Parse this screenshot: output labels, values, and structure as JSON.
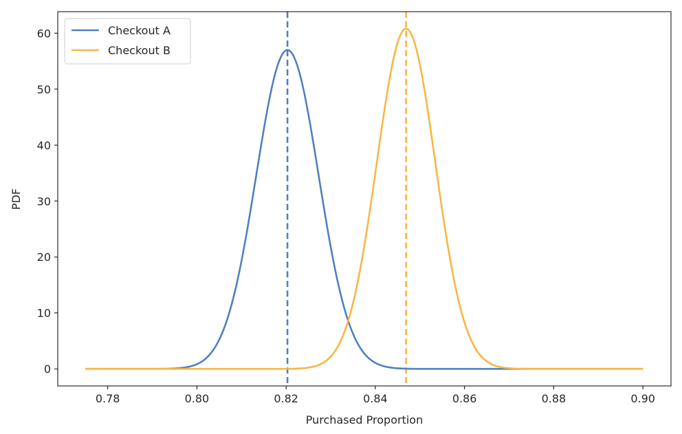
{
  "chart_data": {
    "type": "line",
    "title": "",
    "xlabel": "Purchased Proportion",
    "ylabel": "PDF",
    "xlim": [
      0.7688,
      0.9063
    ],
    "ylim": [
      -3.04,
      63.84
    ],
    "xticks": [
      0.78,
      0.8,
      0.82,
      0.84,
      0.86,
      0.88,
      0.9
    ],
    "xtick_labels": [
      "0.78",
      "0.80",
      "0.82",
      "0.84",
      "0.86",
      "0.88",
      "0.90"
    ],
    "yticks": [
      0,
      10,
      20,
      30,
      40,
      50,
      60
    ],
    "ytick_labels": [
      "0",
      "10",
      "20",
      "30",
      "40",
      "50",
      "60"
    ],
    "grid": false,
    "legend_position": "top-left",
    "x_range": [
      0.775,
      0.9
    ],
    "series": [
      {
        "name": "Checkout A",
        "color": "#4e81bd",
        "mean": 0.8203,
        "peak": 57.0,
        "mean_line": 0.8203
      },
      {
        "name": "Checkout B",
        "color": "#f8b642",
        "mean": 0.8469,
        "peak": 60.8,
        "mean_line": 0.8469
      }
    ]
  }
}
